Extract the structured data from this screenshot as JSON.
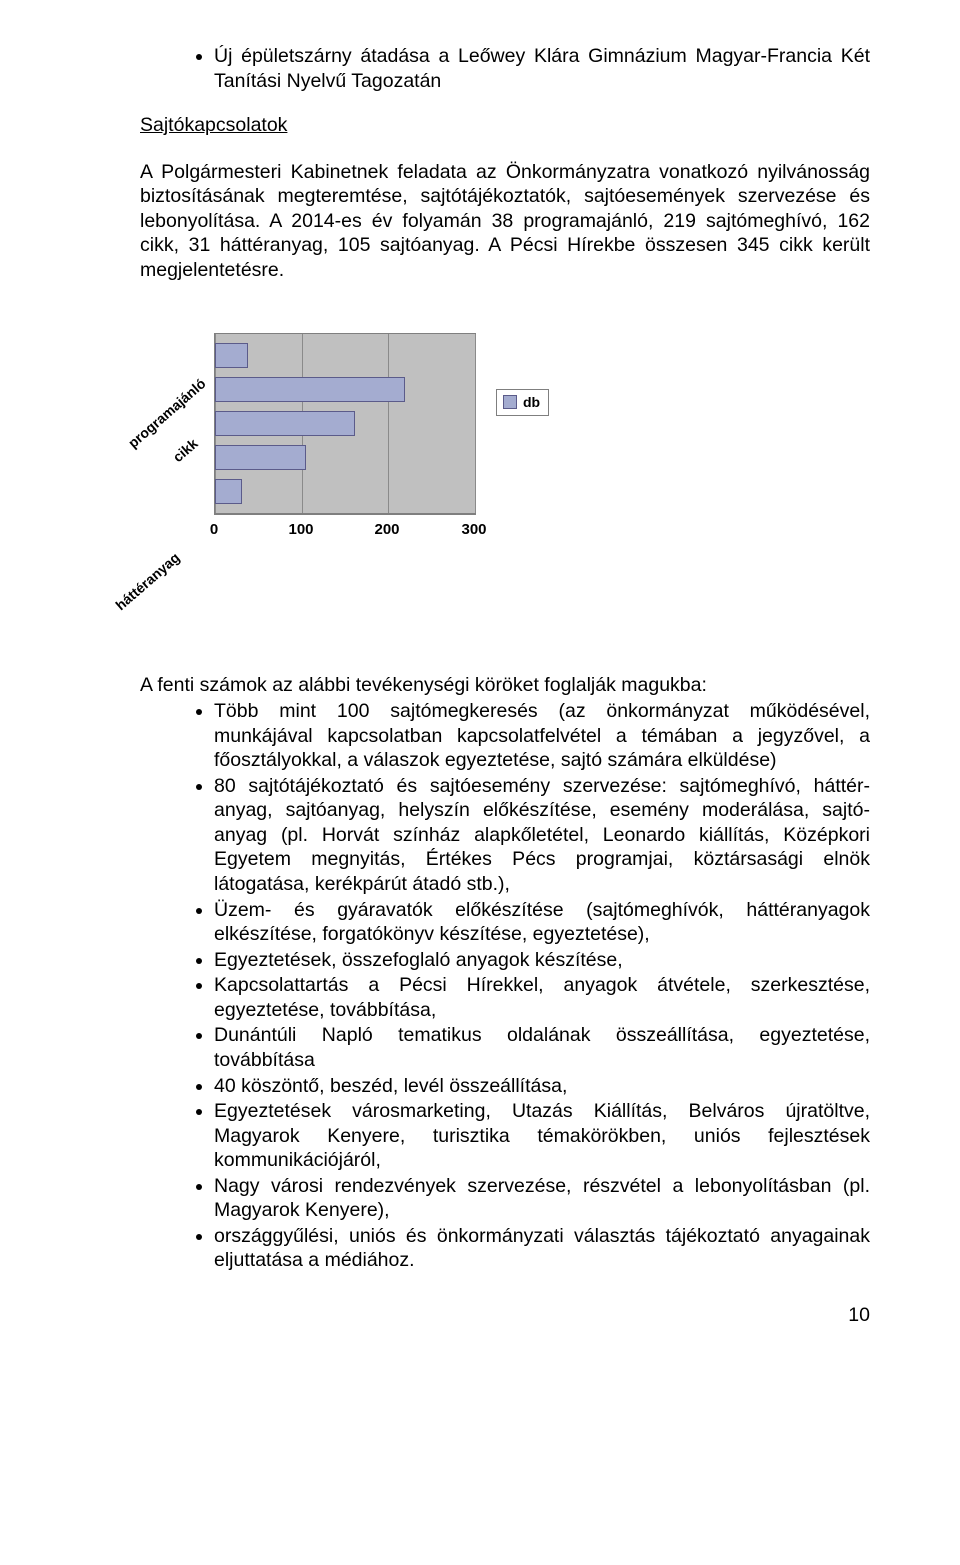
{
  "top_bullets": [
    "Új épületszárny átadása a Leőwey Klára Gimnázium Magyar-Francia Két Tanítási Nyelvű Tagozatán"
  ],
  "section_title": "Sajtókapcsolatok",
  "paragraph": "A Polgármesteri Kabinetnek feladata az Önkormányzatra vonatkozó nyilvánosság biztosításának megteremtése, sajtótájékoztatók, sajtóesemények szervezése és lebonyolítása. A 2014-es év folyamán 38 programajánló, 219 sajtómeghívó, 162 cikk, 31 háttéranyag, 105 sajtóanyag. A Pécsi Hírekbe összesen 345 cikk került megjelentetésre.",
  "chart": {
    "type": "bar",
    "orientation": "horizontal",
    "categories": [
      "programajánló",
      "",
      "cikk",
      "",
      "háttéranyag"
    ],
    "values": [
      38,
      219,
      162,
      105,
      31
    ],
    "xlim": [
      0,
      300
    ],
    "xtick_step": 100,
    "xtick_labels": [
      "0",
      "100",
      "200",
      "300"
    ],
    "bar_color": "#a4acd0",
    "bar_border": "#5b5b8a",
    "plot_background": "#c0c0c0",
    "grid_color": "#8a8a8a",
    "page_background": "#ffffff",
    "legend_label": "db",
    "label_fontsize": 14,
    "tick_fontsize": 15,
    "label_rotation_deg": -41
  },
  "intro_line": "A fenti számok az alábbi tevékenységi köröket foglalják magukba:",
  "body_bullets": [
    "Több mint 100 sajtómegkeresés (az önkormányzat működésével, munkájával kapcsolatban kapcsolatfelvétel a témában a jegyzővel, a főosztályokkal, a válaszok egyeztetése, sajtó számára elküldése)",
    "80 sajtótájékoztató és sajtóesemény szervezése: sajtómeghívó, háttér­anyag, sajtóanyag, helyszín előkészítése, esemény moderálása, sajtó­anyag (pl. Horvát színház alapkőletétel, Leonardo kiállítás, Középkori Egyetem megnyitás, Értékes Pécs programjai, köztársasági elnök látogatása, kerékpárút átadó stb.),",
    "Üzem- és gyáravatók előkészítése (sajtómeghívók, háttéranyagok elkészítése, forgatókönyv készítése, egyeztetése),",
    "Egyeztetések, összefoglaló anyagok készítése,",
    "Kapcsolattartás a Pécsi Hírekkel, anyagok átvétele, szerkesztése, egyeztetése, továbbítása,",
    "Dunántúli Napló tematikus oldalának összeállítása, egyeztetése, továbbítása",
    "40 köszöntő, beszéd, levél összeállítása,",
    "Egyeztetések városmarketing, Utazás Kiállítás, Belváros újratöltve, Magyarok Kenyere, turisztika témakörökben, uniós fejlesztések kommunikációjáról,",
    "Nagy városi rendezvények szervezése, részvétel a lebonyolításban (pl. Magyarok Kenyere),",
    "országgyűlési, uniós és önkormányzati választás tájékoztató anyagainak eljuttatása a médiához."
  ],
  "page_number": "10"
}
